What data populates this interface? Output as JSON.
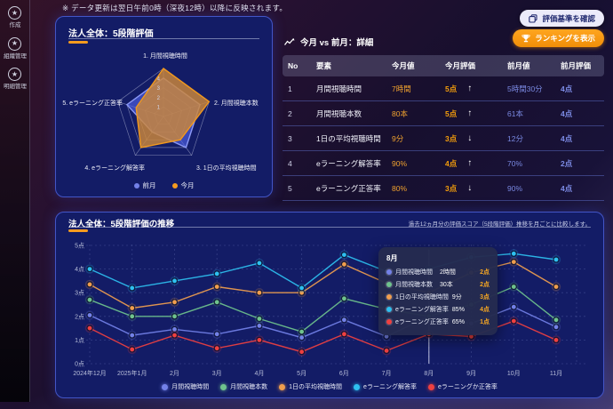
{
  "page": {
    "update_note": "※ データ更新は翌日午前0時（深夜12時）以降に反映されます。",
    "accent_orange": "#f59b1f",
    "accent_blue": "#7584dd",
    "panel_bg": "#131c66"
  },
  "sidebar": {
    "items": [
      {
        "label": "作成",
        "icon": "star-circle-icon"
      },
      {
        "label": "組織管理",
        "icon": "star-circle-icon"
      },
      {
        "label": "明細管理",
        "icon": "star-circle-icon"
      }
    ]
  },
  "actions": {
    "criteria_button": {
      "label": "評価基準を確認",
      "icon": "criteria-icon"
    },
    "ranking_button": {
      "label": "ランキングを表示",
      "icon": "trophy-icon"
    }
  },
  "radar_panel": {
    "title": "法人全体：5段階評価",
    "legend": [
      {
        "label": "前月",
        "color": "#7381e8"
      },
      {
        "label": "今月",
        "color": "#f59b1f"
      }
    ]
  },
  "comparison": {
    "title": "今月 vs 前月：詳細",
    "headers": [
      "No",
      "要素",
      "今月値",
      "今月評価",
      "前月値",
      "前月評価"
    ],
    "rows": [
      {
        "no": "1",
        "element": "月間視聴時間",
        "current_value": "7時間",
        "current_score": "5点",
        "trend": "up",
        "prev_value": "5時間30分",
        "prev_score": "4点"
      },
      {
        "no": "2",
        "element": "月間視聴本数",
        "current_value": "80本",
        "current_score": "5点",
        "trend": "up",
        "prev_value": "61本",
        "prev_score": "4点"
      },
      {
        "no": "3",
        "element": "1日の平均視聴時間",
        "current_value": "9分",
        "current_score": "3点",
        "trend": "down",
        "prev_value": "12分",
        "prev_score": "4点"
      },
      {
        "no": "4",
        "element": "eラーニング解答率",
        "current_value": "90%",
        "current_score": "4点",
        "trend": "up",
        "prev_value": "70%",
        "prev_score": "2点"
      },
      {
        "no": "5",
        "element": "eラーニング正答率",
        "current_value": "80%",
        "current_score": "3点",
        "trend": "down",
        "prev_value": "90%",
        "prev_score": "4点"
      }
    ]
  },
  "trend_panel": {
    "title": "法人全体：5段階評価の推移",
    "subtitle": "過去12ヵ月分の評価スコア（5段階評価）推移を月ごとに比較します。",
    "tooltip": {
      "title": "8月",
      "rows": [
        {
          "label": "月間視聴時間",
          "value": "2時間",
          "score": "2点",
          "color": "#7381e8"
        },
        {
          "label": "月間視聴本数",
          "value": "30本",
          "score": "2点",
          "color": "#6fc38d"
        },
        {
          "label": "1日の平均視聴時間",
          "value": "9分",
          "score": "3点",
          "color": "#f09e4e"
        },
        {
          "label": "eラーニング解答率",
          "value": "85%",
          "score": "4点",
          "color": "#2ec0f0"
        },
        {
          "label": "eラーニング正答率",
          "value": "65%",
          "score": "1点",
          "color": "#ef4040"
        }
      ]
    }
  },
  "chart_data": [
    {
      "type": "radar",
      "title": "法人全体：5段階評価",
      "axes": [
        "1. 月間視聴時間",
        "2. 月間視聴本数",
        "3. 1日の平均視聴時間",
        "4. eラーニング解答率",
        "5. eラーニング正答率"
      ],
      "ring_labels": [
        "1",
        "2",
        "3",
        "4"
      ],
      "max": 5,
      "series": [
        {
          "name": "前月",
          "color": "#8b98f5",
          "fill": "rgba(80,100,235,0.62)",
          "values": [
            4,
            4,
            4,
            2,
            4
          ]
        },
        {
          "name": "今月",
          "color": "#f0981e",
          "fill": "rgba(205,135,58,0.82)",
          "values": [
            5,
            5,
            3,
            4,
            3
          ]
        }
      ]
    },
    {
      "type": "line",
      "title": "法人全体：5段階評価の推移",
      "categories": [
        "2024年12月",
        "2025年1月",
        "2月",
        "3月",
        "4月",
        "5月",
        "6月",
        "7月",
        "8月",
        "9月",
        "10月",
        "11月"
      ],
      "ylabels": [
        "0点",
        "1点",
        "2点",
        "3点",
        "4点",
        "5点"
      ],
      "ylim": [
        0,
        5
      ],
      "grid": true,
      "legend_position": "bottom",
      "highlight_index": 8,
      "series": [
        {
          "name": "月間視聴時間",
          "color": "#7381e8",
          "values": [
            2.05,
            1.2,
            1.45,
            1.25,
            1.6,
            1.1,
            1.85,
            1.15,
            2.0,
            1.7,
            2.4,
            1.55
          ]
        },
        {
          "name": "月間視聴本数",
          "color": "#6fc38d",
          "values": [
            2.7,
            2.0,
            2.0,
            2.6,
            1.9,
            1.35,
            2.75,
            2.3,
            2.0,
            2.5,
            3.25,
            1.85
          ]
        },
        {
          "name": "1日の平均視聴時間",
          "color": "#f09e4e",
          "values": [
            3.35,
            2.35,
            2.6,
            3.25,
            3.0,
            3.0,
            4.2,
            3.4,
            3.0,
            3.85,
            4.3,
            3.25
          ]
        },
        {
          "name": "eラーニング解答率",
          "color": "#2ec0f0",
          "values": [
            4.0,
            3.2,
            3.5,
            3.8,
            4.25,
            3.2,
            4.6,
            3.9,
            4.0,
            4.5,
            4.65,
            4.4
          ]
        },
        {
          "name": "eラーニングか正答率",
          "color": "#ef4040",
          "values": [
            1.5,
            0.6,
            1.2,
            0.65,
            1.0,
            0.5,
            1.25,
            0.55,
            1.25,
            1.15,
            1.8,
            1.0
          ]
        }
      ]
    }
  ]
}
